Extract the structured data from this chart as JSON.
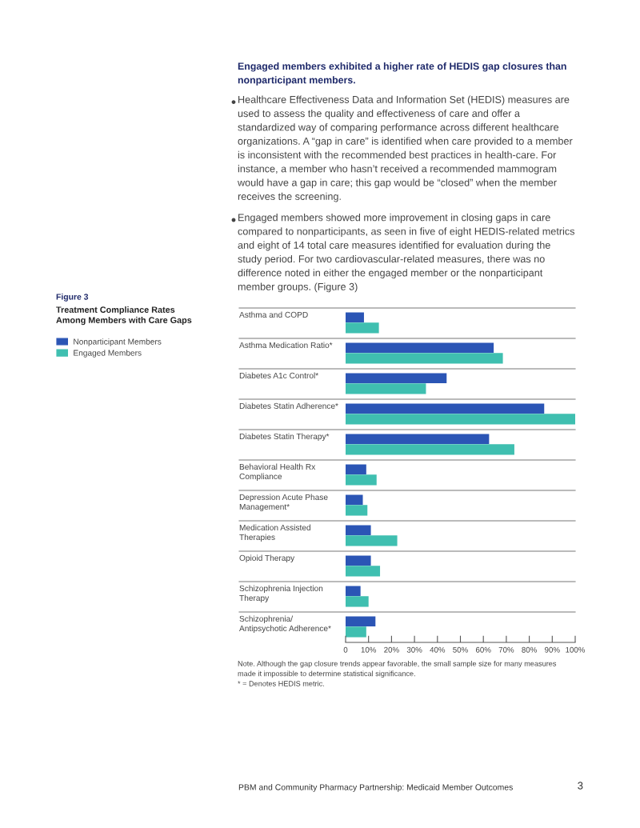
{
  "chart_data": {
    "type": "bar",
    "orientation": "horizontal",
    "subtitle": "Figure 3",
    "title": "Treatment Compliance Rates Among Members with Care Gaps",
    "categories": [
      "Asthma and COPD",
      "Asthma Medication Ratio*",
      "Diabetes A1c Control*",
      "Diabetes Statin Adherence*",
      "Diabetes Statin Therapy*",
      "Behavioral Health Rx Compliance",
      "Depression Acute Phase Management*",
      "Medication Assisted Therapies",
      "Opioid Therapy",
      "Schizophrenia Injection Therapy",
      "Schizophrenia/ Antipsychotic Adherence*"
    ],
    "series": [
      {
        "name": "Nonparticipant Members",
        "color": "#2b55b5",
        "values": [
          8,
          64.5,
          44,
          86.5,
          62.5,
          9,
          7.5,
          11,
          11,
          6.5,
          13
        ]
      },
      {
        "name": "Engaged Members",
        "color": "#3fbfb0",
        "values": [
          14.5,
          68.5,
          35,
          100,
          73.5,
          13.5,
          9.5,
          22.5,
          15,
          10,
          9
        ]
      }
    ],
    "xlim": [
      0,
      100
    ],
    "xticks": [
      0,
      {
        "value": 10,
        "label": "10%"
      },
      {
        "value": 20,
        "label": "20%"
      },
      {
        "value": 30,
        "label": "30%"
      },
      {
        "value": 40,
        "label": "40%"
      },
      {
        "value": 50,
        "label": "50%"
      },
      {
        "value": 60,
        "label": "60%"
      },
      {
        "value": 70,
        "label": "70%"
      },
      {
        "value": 80,
        "label": "80%"
      },
      {
        "value": 90,
        "label": "90%"
      },
      {
        "value": 100,
        "label": "100%"
      }
    ],
    "grid": "y",
    "legend": "left",
    "annotations": [
      "Engaged members exhibited a higher rate of HEDIS gap closures than nonparticipant members.",
      "Healthcare Effectiveness Data and Information Set (HEDIS) measures are used to assess the quality and effectiveness of care and offer a standardized way of comparing performance across different healthcare organizations. A “gap in care” is identified when care provided to a member is inconsistent with the recommended best practices in health-care. For instance, a member who hasn’t received a recommended mammogram would have a gap in care; this gap would be “closed” when the member receives the screening.",
      "Engaged members showed more improvement in closing gaps in care compared to nonparticipants, as seen in five of eight HEDIS-related metrics and eight of 14 total care measures identified for evaluation during the study period. For two cardiovascular-related measures, there was no difference noted in either the engaged member or the nonparticipant member groups. (Figure 3)",
      "Note. Although the gap closure trends appear favorable, the small sample size for many measures made it impossible to determine statistical significance.",
      "* = Denotes HEDIS metric.",
      "PBM and Community Pharmacy Partnership: Medicaid Member Outcomes",
      "3"
    ]
  }
}
